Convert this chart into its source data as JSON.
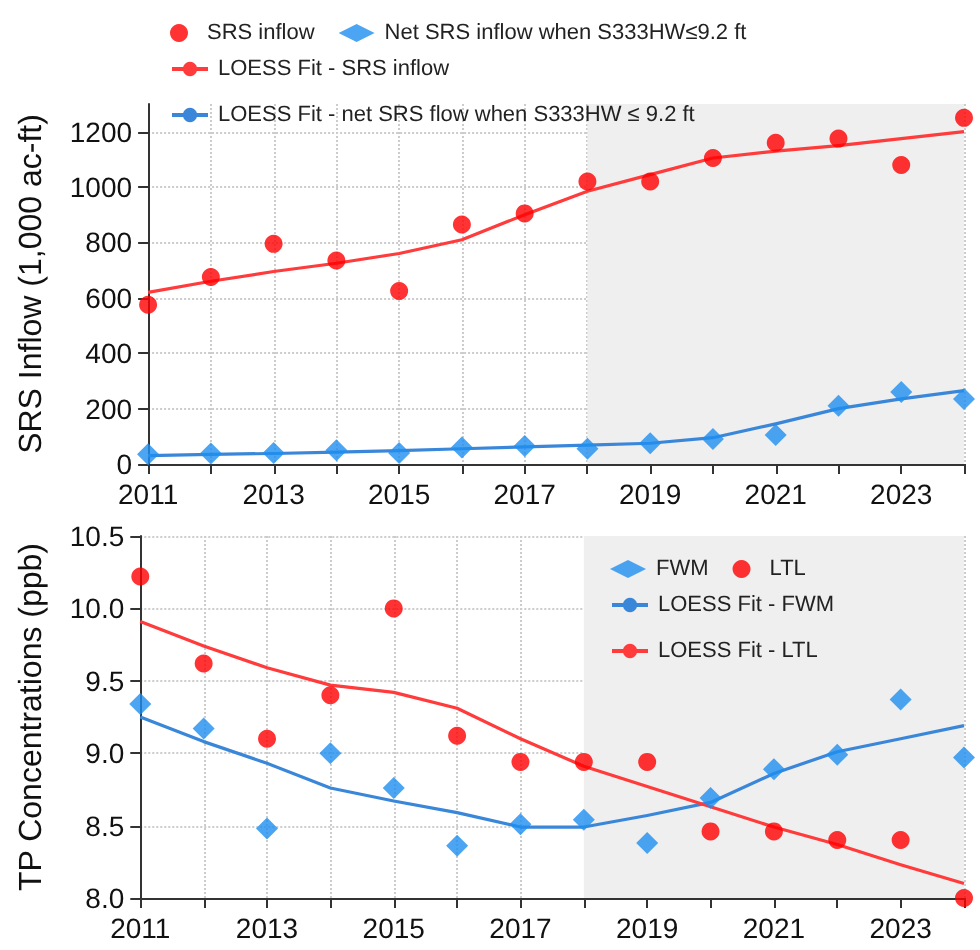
{
  "chart_data": [
    {
      "type": "scatter",
      "ylabel": "SRS Inflow (1,000 ac-ft)",
      "x": [
        2011,
        2012,
        2013,
        2014,
        2015,
        2016,
        2017,
        2018,
        2019,
        2020,
        2021,
        2022,
        2023,
        2024
      ],
      "series": [
        {
          "name": "SRS inflow",
          "marker": "circle",
          "color": "#ff0000",
          "values": [
            575,
            675,
            795,
            735,
            625,
            865,
            905,
            1020,
            1020,
            1105,
            1160,
            1175,
            1080,
            1250
          ]
        },
        {
          "name": "Net SRS inflow when S333HW≤9.2 ft",
          "marker": "diamond",
          "color": "#1e8ff0",
          "values": [
            35,
            38,
            40,
            50,
            40,
            60,
            65,
            55,
            75,
            90,
            105,
            210,
            260,
            235
          ]
        },
        {
          "name": "LOESS Fit - SRS inflow",
          "type": "line",
          "marker": "none",
          "color": "#ff3b3b",
          "values": [
            620,
            660,
            695,
            725,
            760,
            810,
            900,
            985,
            1045,
            1105,
            1130,
            1150,
            1175,
            1200
          ]
        },
        {
          "name": "LOESS Fit - net SRS flow when S333HW ≤ 9.2 ft",
          "type": "line",
          "marker": "none",
          "color": "#3a87d9",
          "values": [
            30,
            35,
            38,
            43,
            48,
            55,
            62,
            68,
            75,
            95,
            145,
            200,
            235,
            265
          ]
        }
      ],
      "xlim": [
        2011,
        2024
      ],
      "xticks": [
        2011,
        {
          "value": 2012,
          "label": null
        },
        2013,
        {
          "value": 2014,
          "label": null
        },
        2015,
        {
          "value": 2016,
          "label": null
        },
        2017,
        {
          "value": 2018,
          "label": null
        },
        2019,
        {
          "value": 2020,
          "label": null
        },
        2021,
        {
          "value": 2022,
          "label": null
        },
        2023,
        {
          "value": 2024,
          "label": null
        }
      ],
      "ylim": [
        0,
        1300
      ],
      "yticks": [
        0,
        200,
        400,
        600,
        800,
        1000,
        1200
      ],
      "bands": [
        {
          "axis": "x",
          "from": 2018,
          "to": 2024,
          "color": "#efefef"
        }
      ],
      "grid": true,
      "legend": "top"
    },
    {
      "type": "scatter",
      "ylabel": "TP Concentrations (ppb)",
      "x": [
        2011,
        2012,
        2013,
        2014,
        2015,
        2016,
        2017,
        2018,
        2019,
        2020,
        2021,
        2022,
        2023,
        2024
      ],
      "series": [
        {
          "name": "FWM",
          "marker": "diamond",
          "color": "#1e8ff0",
          "values": [
            9.34,
            9.17,
            8.48,
            9.0,
            8.76,
            8.36,
            8.51,
            8.54,
            8.38,
            8.69,
            8.89,
            8.99,
            9.37,
            8.97
          ]
        },
        {
          "name": "LTL",
          "marker": "circle",
          "color": "#ff0000",
          "values": [
            10.22,
            9.62,
            9.1,
            9.4,
            10.0,
            9.12,
            8.94,
            8.94,
            8.94,
            8.46,
            8.46,
            8.4,
            8.4,
            8.0
          ]
        },
        {
          "name": "LOESS Fit - FWM",
          "type": "line",
          "marker": "none",
          "color": "#3a87d9",
          "values": [
            9.25,
            9.08,
            8.93,
            8.76,
            8.67,
            8.59,
            8.49,
            8.49,
            8.57,
            8.66,
            8.86,
            9.01,
            9.1,
            9.19
          ]
        },
        {
          "name": "LOESS Fit - LTL",
          "type": "line",
          "marker": "none",
          "color": "#ff3b3b",
          "values": [
            9.91,
            9.74,
            9.59,
            9.47,
            9.42,
            9.31,
            9.1,
            8.91,
            8.77,
            8.63,
            8.49,
            8.37,
            8.23,
            8.1
          ]
        }
      ],
      "xlim": [
        2011,
        2024
      ],
      "xticks": [
        2011,
        {
          "value": 2012,
          "label": null
        },
        2013,
        {
          "value": 2014,
          "label": null
        },
        2015,
        {
          "value": 2016,
          "label": null
        },
        2017,
        {
          "value": 2018,
          "label": null
        },
        2019,
        {
          "value": 2020,
          "label": null
        },
        2021,
        {
          "value": 2022,
          "label": null
        },
        2023,
        {
          "value": 2024,
          "label": null
        }
      ],
      "ylim": [
        8,
        10.5
      ],
      "yticks": [
        {
          "value": 8,
          "label": "8.0"
        },
        {
          "value": 8.5,
          "label": "8.5"
        },
        {
          "value": 9,
          "label": "9.0"
        },
        {
          "value": 9.5,
          "label": "9.5"
        },
        {
          "value": 10,
          "label": "10.0"
        },
        {
          "value": 10.5,
          "label": "10.5"
        }
      ],
      "bands": [
        {
          "axis": "x",
          "from": 2018,
          "to": 2024,
          "color": "#efefef"
        }
      ],
      "grid": true,
      "legend": "top right"
    }
  ]
}
